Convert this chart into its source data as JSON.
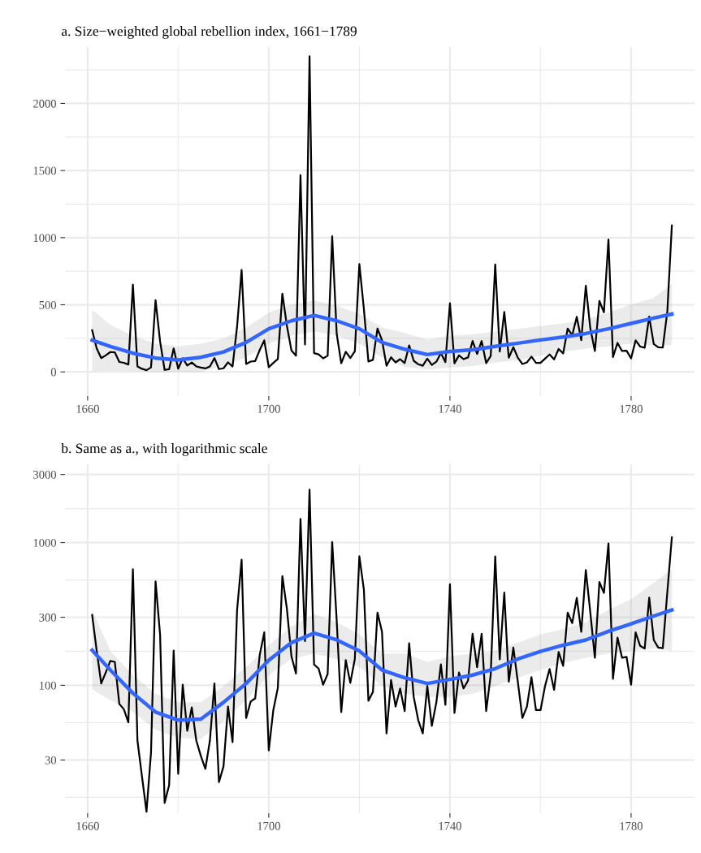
{
  "chart_data": [
    {
      "type": "line",
      "title": "a. Size−weighted global rebellion index, 1661−1789",
      "grid": true,
      "xlim": [
        1655,
        1794
      ],
      "xticks": [
        1660,
        1700,
        1740,
        1780
      ],
      "ylim": [
        -180,
        2420
      ],
      "yticks": [
        0,
        500,
        1000,
        1500,
        2000
      ],
      "series": [
        {
          "color": "#000000",
          "x": [
            1661,
            1662,
            1663,
            1664,
            1665,
            1666,
            1667,
            1668,
            1669,
            1670,
            1671,
            1672,
            1673,
            1674,
            1675,
            1676,
            1677,
            1678,
            1679,
            1680,
            1681,
            1682,
            1683,
            1684,
            1685,
            1686,
            1687,
            1688,
            1689,
            1690,
            1691,
            1692,
            1693,
            1694,
            1695,
            1696,
            1697,
            1698,
            1699,
            1700,
            1701,
            1702,
            1703,
            1704,
            1705,
            1706,
            1707,
            1708,
            1709,
            1710,
            1711,
            1712,
            1713,
            1714,
            1715,
            1716,
            1717,
            1718,
            1719,
            1720,
            1721,
            1722,
            1723,
            1724,
            1725,
            1726,
            1727,
            1728,
            1729,
            1730,
            1731,
            1732,
            1733,
            1734,
            1735,
            1736,
            1737,
            1738,
            1739,
            1740,
            1741,
            1742,
            1743,
            1744,
            1745,
            1746,
            1747,
            1748,
            1749,
            1750,
            1751,
            1752,
            1753,
            1754,
            1755,
            1756,
            1757,
            1758,
            1759,
            1760,
            1761,
            1762,
            1763,
            1764,
            1765,
            1766,
            1767,
            1768,
            1769,
            1770,
            1771,
            1772,
            1773,
            1774,
            1775,
            1776,
            1777,
            1778,
            1779,
            1780,
            1781,
            1782,
            1783,
            1784,
            1785,
            1786,
            1787,
            1788,
            1789
          ],
          "values": [
            311,
            175,
            103,
            123,
            148,
            146,
            74,
            68,
            55,
            650,
            41,
            23,
            13,
            34,
            534,
            227,
            15,
            20,
            175,
            24,
            101,
            48,
            70,
            41,
            32,
            26,
            41,
            103,
            21,
            27,
            71,
            40,
            337,
            759,
            59,
            77,
            81,
            163,
            235,
            35,
            67,
            96,
            583,
            344,
            160,
            121,
            1465,
            204,
            2351,
            140,
            131,
            101,
            120,
            1010,
            283,
            65,
            150,
            104,
            153,
            803,
            468,
            78,
            90,
            323,
            237,
            46,
            109,
            71,
            95,
            66,
            197,
            83,
            57,
            46,
            99,
            52,
            76,
            140,
            73,
            511,
            64,
            123,
            95,
            108,
            230,
            134,
            230,
            66,
            118,
            800,
            152,
            446,
            106,
            184,
            105,
            59,
            71,
            114,
            67,
            67,
            99,
            130,
            93,
            171,
            137,
            323,
            273,
            410,
            237,
            642,
            323,
            156,
            529,
            444,
            986,
            111,
            216,
            156,
            158,
            101,
            235,
            189,
            181,
            412,
            208,
            184,
            182,
            450,
            1091
          ]
        },
        {
          "type": "line",
          "color": "#3366ff",
          "x": [
            1661,
            1665,
            1670,
            1675,
            1680,
            1685,
            1690,
            1695,
            1700,
            1705,
            1710,
            1715,
            1720,
            1725,
            1730,
            1735,
            1740,
            1745,
            1750,
            1755,
            1760,
            1765,
            1770,
            1775,
            1780,
            1785,
            1789
          ],
          "values": [
            236,
            190,
            139,
            103,
            89,
            109,
            149,
            220,
            321,
            381,
            421,
            381,
            321,
            220,
            169,
            129,
            153,
            165,
            190,
            214,
            238,
            260,
            286,
            321,
            361,
            401,
            431
          ],
          "lower": [
            8,
            8,
            8,
            0,
            0,
            0,
            48,
            109,
            210,
            270,
            300,
            270,
            210,
            109,
            38,
            18,
            32,
            44,
            69,
            89,
            119,
            149,
            173,
            190,
            210,
            200,
            200
          ],
          "upper": [
            462,
            351,
            270,
            210,
            190,
            210,
            250,
            331,
            442,
            502,
            532,
            492,
            431,
            331,
            290,
            240,
            270,
            280,
            300,
            321,
            341,
            361,
            391,
            442,
            502,
            552,
            653
          ]
        }
      ]
    },
    {
      "type": "line",
      "title": "b. Same as a., with logarithmic scale",
      "grid": true,
      "log": true,
      "xlim": [
        1655,
        1794
      ],
      "xticks": [
        1660,
        1700,
        1740,
        1780
      ],
      "ylim": [
        12.7,
        3540
      ],
      "yticks": [
        30,
        100,
        300,
        1000,
        3000
      ],
      "series": [
        {
          "color": "#000000",
          "x": [
            1661,
            1662,
            1663,
            1664,
            1665,
            1666,
            1667,
            1668,
            1669,
            1670,
            1671,
            1672,
            1673,
            1674,
            1675,
            1676,
            1677,
            1678,
            1679,
            1680,
            1681,
            1682,
            1683,
            1684,
            1685,
            1686,
            1687,
            1688,
            1689,
            1690,
            1691,
            1692,
            1693,
            1694,
            1695,
            1696,
            1697,
            1698,
            1699,
            1700,
            1701,
            1702,
            1703,
            1704,
            1705,
            1706,
            1707,
            1708,
            1709,
            1710,
            1711,
            1712,
            1713,
            1714,
            1715,
            1716,
            1717,
            1718,
            1719,
            1720,
            1721,
            1722,
            1723,
            1724,
            1725,
            1726,
            1727,
            1728,
            1729,
            1730,
            1731,
            1732,
            1733,
            1734,
            1735,
            1736,
            1737,
            1738,
            1739,
            1740,
            1741,
            1742,
            1743,
            1744,
            1745,
            1746,
            1747,
            1748,
            1749,
            1750,
            1751,
            1752,
            1753,
            1754,
            1755,
            1756,
            1757,
            1758,
            1759,
            1760,
            1761,
            1762,
            1763,
            1764,
            1765,
            1766,
            1767,
            1768,
            1769,
            1770,
            1771,
            1772,
            1773,
            1774,
            1775,
            1776,
            1777,
            1778,
            1779,
            1780,
            1781,
            1782,
            1783,
            1784,
            1785,
            1786,
            1787,
            1788,
            1789
          ],
          "values": [
            311,
            175,
            103,
            123,
            148,
            146,
            74,
            68,
            55,
            650,
            41,
            23,
            13,
            34,
            534,
            227,
            15,
            20,
            175,
            24,
            101,
            48,
            70,
            41,
            32,
            26,
            41,
            103,
            21,
            27,
            71,
            40,
            337,
            759,
            59,
            77,
            81,
            163,
            235,
            35,
            67,
            96,
            583,
            344,
            160,
            121,
            1465,
            204,
            2351,
            140,
            131,
            101,
            120,
            1010,
            283,
            65,
            150,
            104,
            153,
            803,
            468,
            78,
            90,
            323,
            237,
            46,
            109,
            71,
            95,
            66,
            197,
            83,
            57,
            46,
            99,
            52,
            76,
            140,
            73,
            511,
            64,
            123,
            95,
            108,
            230,
            134,
            230,
            66,
            118,
            800,
            152,
            446,
            106,
            184,
            105,
            59,
            71,
            114,
            67,
            67,
            99,
            130,
            93,
            171,
            137,
            323,
            273,
            410,
            237,
            642,
            323,
            156,
            529,
            444,
            986,
            111,
            216,
            156,
            158,
            101,
            235,
            189,
            181,
            412,
            208,
            184,
            182,
            450,
            1091
          ]
        },
        {
          "type": "line",
          "color": "#3366ff",
          "x": [
            1661,
            1665,
            1670,
            1675,
            1680,
            1685,
            1690,
            1695,
            1700,
            1705,
            1710,
            1715,
            1720,
            1725,
            1730,
            1735,
            1740,
            1745,
            1750,
            1755,
            1760,
            1765,
            1770,
            1775,
            1780,
            1785,
            1789
          ],
          "values": [
            176,
            128,
            88,
            65,
            57,
            58,
            76,
            103,
            150,
            199,
            232,
            208,
            174,
            128,
            113,
            103,
            110,
            118,
            131,
            153,
            173,
            191,
            208,
            239,
            270,
            306,
            337
          ],
          "lower": [
            94,
            79,
            65,
            49,
            43,
            42,
            56,
            79,
            118,
            153,
            167,
            153,
            134,
            99,
            87,
            83,
            83,
            87,
            99,
            113,
            128,
            143,
            156,
            167,
            174,
            182,
            174
          ],
          "upper": [
            337,
            174,
            118,
            87,
            76,
            76,
            99,
            134,
            191,
            259,
            315,
            277,
            227,
            167,
            167,
            146,
            160,
            167,
            174,
            199,
            227,
            248,
            277,
            337,
            401,
            524,
            650
          ]
        }
      ]
    }
  ]
}
